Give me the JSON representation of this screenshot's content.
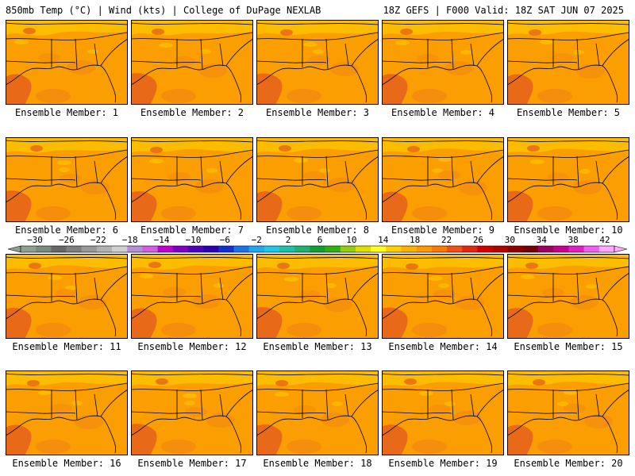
{
  "header": {
    "title": "850mb Temp (°C) | Wind (kts) | College of DuPage NEXLAB",
    "run_info": "18Z GEFS | F000 Valid: 18Z SAT JUN 07 2025"
  },
  "panels": [
    {
      "label": "Ensemble Member: 1"
    },
    {
      "label": "Ensemble Member: 2"
    },
    {
      "label": "Ensemble Member: 3"
    },
    {
      "label": "Ensemble Member: 4"
    },
    {
      "label": "Ensemble Member: 5"
    },
    {
      "label": "Ensemble Member: 6"
    },
    {
      "label": "Ensemble Member: 7"
    },
    {
      "label": "Ensemble Member: 8"
    },
    {
      "label": "Ensemble Member: 9"
    },
    {
      "label": "Ensemble Member: 10"
    },
    {
      "label": "Ensemble Member: 11"
    },
    {
      "label": "Ensemble Member: 12"
    },
    {
      "label": "Ensemble Member: 13"
    },
    {
      "label": "Ensemble Member: 14"
    },
    {
      "label": "Ensemble Member: 15"
    },
    {
      "label": "Ensemble Member: 16"
    },
    {
      "label": "Ensemble Member: 17"
    },
    {
      "label": "Ensemble Member: 18"
    },
    {
      "label": "Ensemble Member: 19"
    },
    {
      "label": "Ensemble Member: 20"
    }
  ],
  "colorbar": {
    "tick_labels": [
      "−30",
      "−26",
      "−22",
      "−18",
      "−14",
      "−10",
      "−6",
      "−2",
      "2",
      "6",
      "10",
      "14",
      "18",
      "22",
      "26",
      "30",
      "34",
      "38",
      "42"
    ],
    "colors": [
      "#8fa090",
      "#7a8a7f",
      "#676767",
      "#7f7f7f",
      "#999999",
      "#b3b3b3",
      "#d0d0d0",
      "#b48fd8",
      "#d060e0",
      "#c000d0",
      "#8000c8",
      "#5000b8",
      "#2a00b0",
      "#1030d0",
      "#1c70e8",
      "#20a8f0",
      "#20c8e8",
      "#20c0a8",
      "#20b070",
      "#10a030",
      "#30b010",
      "#90cc10",
      "#e0e000",
      "#ffff20",
      "#ffd000",
      "#ffb000",
      "#ff9800",
      "#ff7800",
      "#f05010",
      "#e02810",
      "#d00000",
      "#b00000",
      "#900000",
      "#780008",
      "#a00060",
      "#c80090",
      "#e020c0",
      "#f060f0",
      "#ffa8ff"
    ],
    "panel_fill": "#fb9e01",
    "warm_fill": "#f48a10",
    "hot_fill": "#e86a18",
    "cool_fill": "#fcbf00",
    "coast_color": "#000000"
  }
}
